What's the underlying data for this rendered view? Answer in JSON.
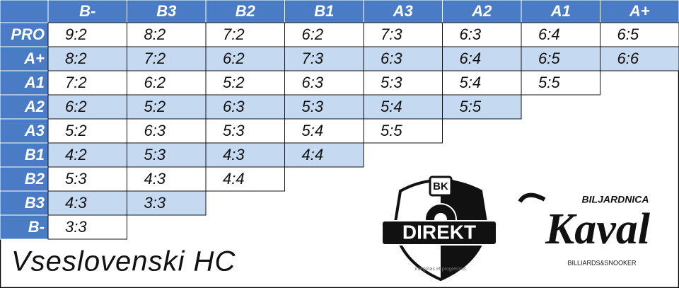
{
  "table": {
    "columns": [
      "B-",
      "B3",
      "B2",
      "B1",
      "A3",
      "A2",
      "A1",
      "A+"
    ],
    "rows": [
      {
        "label": "PRO",
        "cells": [
          "9:2",
          "8:2",
          "7:2",
          "6:2",
          "7:3",
          "6:3",
          "6:4",
          "6:5"
        ]
      },
      {
        "label": "A+",
        "cells": [
          "8:2",
          "7:2",
          "6:2",
          "7:3",
          "6:3",
          "6:4",
          "6:5",
          "6:6"
        ]
      },
      {
        "label": "A1",
        "cells": [
          "7:2",
          "6:2",
          "5:2",
          "6:3",
          "5:3",
          "5:4",
          "5:5"
        ]
      },
      {
        "label": "A2",
        "cells": [
          "6:2",
          "5:2",
          "6:3",
          "5:3",
          "5:4",
          "5:5"
        ]
      },
      {
        "label": "A3",
        "cells": [
          "5:2",
          "6:3",
          "5:3",
          "5:4",
          "5:5"
        ]
      },
      {
        "label": "B1",
        "cells": [
          "4:2",
          "5:3",
          "4:3",
          "4:4"
        ]
      },
      {
        "label": "B2",
        "cells": [
          "5:3",
          "4:3",
          "4:4"
        ]
      },
      {
        "label": "B3",
        "cells": [
          "4:3",
          "3:3"
        ]
      },
      {
        "label": "B-",
        "cells": [
          "3:3"
        ]
      }
    ]
  },
  "footer": "Vseslovenski HC",
  "logos": {
    "direkt": {
      "badge": "BK",
      "name": "DIREKT",
      "motto": "integritas et progressus"
    },
    "kaval": {
      "top": "BILJARDNICA",
      "name": "Kaval",
      "bottom": "BILLIARDS&SNOOKER"
    }
  }
}
